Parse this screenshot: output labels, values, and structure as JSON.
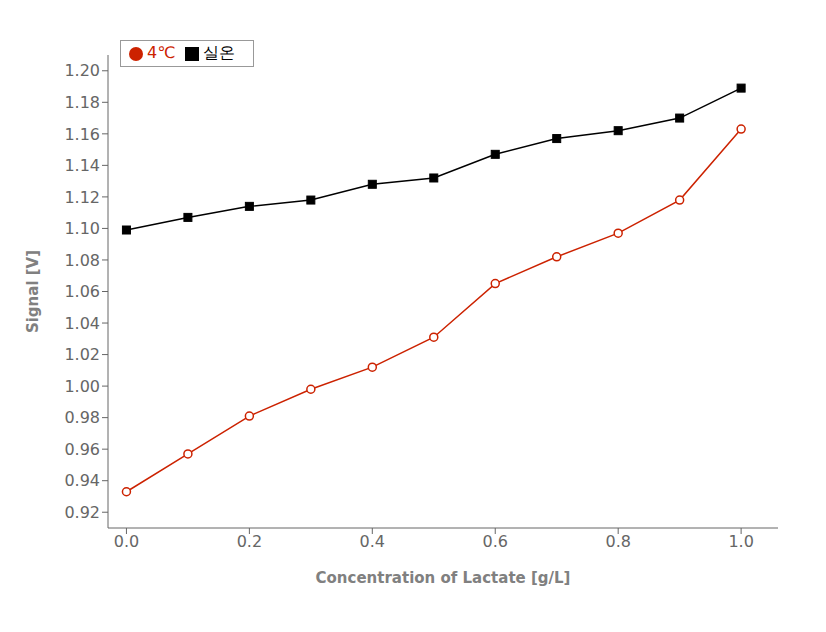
{
  "chart_data": {
    "type": "line",
    "xlabel": "Concentration of Lactate [g/L]",
    "ylabel": "Signal [V]",
    "x": [
      0.0,
      0.1,
      0.2,
      0.3,
      0.4,
      0.5,
      0.6,
      0.7,
      0.8,
      0.9,
      1.0
    ],
    "series": [
      {
        "name": "실온",
        "color": "#000000",
        "marker": "square",
        "values": [
          1.099,
          1.107,
          1.114,
          1.118,
          1.128,
          1.132,
          1.147,
          1.157,
          1.162,
          1.17,
          1.189
        ]
      },
      {
        "name": "4℃",
        "color": "#cc2200",
        "marker": "circle",
        "values": [
          0.933,
          0.957,
          0.981,
          0.998,
          1.012,
          1.031,
          1.065,
          1.082,
          1.097,
          1.118,
          1.163
        ]
      }
    ],
    "xlim": [
      -0.03,
      1.06
    ],
    "ylim": [
      0.91,
      1.21
    ],
    "xticks": [
      {
        "value": 0.0,
        "label": "0.0"
      },
      0.2,
      0.4,
      0.6,
      0.8,
      {
        "value": 1.0,
        "label": "1.0"
      }
    ],
    "yticks": [
      0.92,
      0.94,
      0.96,
      0.98,
      {
        "value": 1.0,
        "label": "1.00"
      },
      1.02,
      1.04,
      1.06,
      1.08,
      {
        "value": 1.1,
        "label": "1.10"
      },
      1.12,
      1.14,
      1.16,
      1.18,
      {
        "value": 1.2,
        "label": "1.20"
      }
    ],
    "grid": false,
    "legend": "upper left"
  }
}
